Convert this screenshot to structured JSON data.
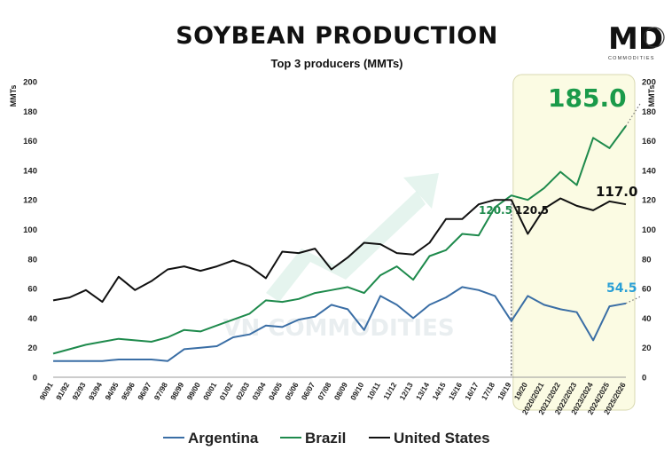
{
  "title": "SOYBEAN PRODUCTION",
  "subtitle": "Top 3 producers (MMTs)",
  "logo": {
    "main": "MD",
    "sub": "COMMODITIES"
  },
  "watermark": "VN COMMODITIES",
  "colors": {
    "argentina": "#3a6ea5",
    "brazil": "#1e8a4c",
    "us": "#111111",
    "highlight": "#fbfbe3",
    "label_blue": "#2a9fd6",
    "label_green": "#1a9a4a"
  },
  "chart_data": {
    "type": "line",
    "title": "SOYBEAN PRODUCTION",
    "subtitle": "Top 3 producers (MMTs)",
    "ylabel": "MMTs",
    "ylim": [
      0,
      200
    ],
    "yticks": [
      0,
      20,
      40,
      60,
      80,
      100,
      120,
      140,
      160,
      180,
      200
    ],
    "categories": [
      "90/91",
      "91/92",
      "92/93",
      "93/94",
      "94/95",
      "95/96",
      "96/97",
      "97/98",
      "98/99",
      "99/00",
      "00/01",
      "01/02",
      "02/03",
      "03/04",
      "04/05",
      "05/06",
      "06/07",
      "07/08",
      "08/09",
      "09/10",
      "10/11",
      "11/12",
      "12/13",
      "13/14",
      "14/15",
      "15/16",
      "16/17",
      "17/18",
      "18/19",
      "19/20",
      "2020/2021",
      "2021/2022",
      "2022/2023",
      "2023/2024",
      "2024/2025",
      "2025/2026"
    ],
    "highlight_from": "18/19",
    "legend": [
      "Argentina",
      "Brazil",
      "United States"
    ],
    "series": [
      {
        "name": "Argentina",
        "values": [
          11,
          11,
          11,
          11,
          12,
          12,
          12,
          11,
          19,
          20,
          21,
          27,
          29,
          35,
          34,
          39,
          41,
          49,
          46,
          32,
          55,
          49,
          40,
          49,
          54,
          61,
          59,
          55,
          38,
          55,
          49,
          46,
          44,
          25,
          48,
          50
        ]
      },
      {
        "name": "Brazil",
        "values": [
          16,
          19,
          22,
          24,
          26,
          25,
          24,
          27,
          32,
          31,
          35,
          39,
          43,
          52,
          51,
          53,
          57,
          59,
          61,
          57,
          69,
          75,
          66,
          82,
          86,
          97,
          96,
          115,
          123,
          120,
          128,
          139,
          130,
          162,
          155,
          170
        ]
      },
      {
        "name": "United States",
        "values": [
          52,
          54,
          59,
          51,
          68,
          59,
          65,
          73,
          75,
          72,
          75,
          79,
          75,
          67,
          85,
          84,
          87,
          73,
          81,
          91,
          90,
          84,
          83,
          91,
          107,
          107,
          117,
          120,
          120,
          97,
          114,
          121,
          116,
          113,
          119,
          117
        ]
      }
    ],
    "projections": [
      {
        "series": "Argentina",
        "from": 50,
        "to": 54.5
      },
      {
        "series": "Brazil",
        "from": 170,
        "to": 185.0
      }
    ],
    "annotations": [
      {
        "text": "185.0",
        "series": "Brazil",
        "value": 185.0
      },
      {
        "text": "117.0",
        "series": "United States",
        "value": 117.0
      },
      {
        "text": "54.5",
        "series": "Argentina",
        "value": 54.5
      },
      {
        "text": "120.5",
        "series": "Brazil",
        "value": 120.5
      },
      {
        "text": "120.5",
        "series": "United States",
        "value": 120.5
      }
    ]
  }
}
